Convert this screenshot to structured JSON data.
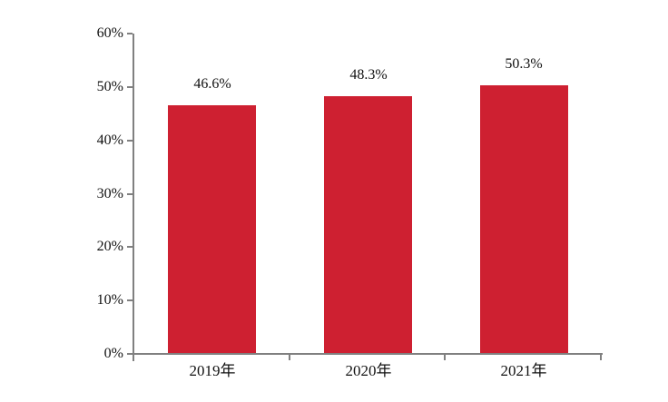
{
  "chart_data": {
    "type": "bar",
    "title": "",
    "xlabel": "",
    "ylabel": "",
    "categories": [
      "2019年",
      "2020年",
      "2021年"
    ],
    "values": [
      46.6,
      48.3,
      50.3
    ],
    "data_labels": [
      "46.6%",
      "48.3%",
      "50.3%"
    ],
    "ylim": [
      0,
      60
    ],
    "y_tick_values": [
      0,
      10,
      20,
      30,
      40,
      50,
      60
    ],
    "y_tick_labels": [
      "0%",
      "10%",
      "20%",
      "30%",
      "40%",
      "50%",
      "60%"
    ],
    "grid": false,
    "legend_position": "none",
    "colors": {
      "bar": "#CE2031",
      "axis": "#808080",
      "text": "#111111",
      "background": "#FFFFFF"
    }
  }
}
